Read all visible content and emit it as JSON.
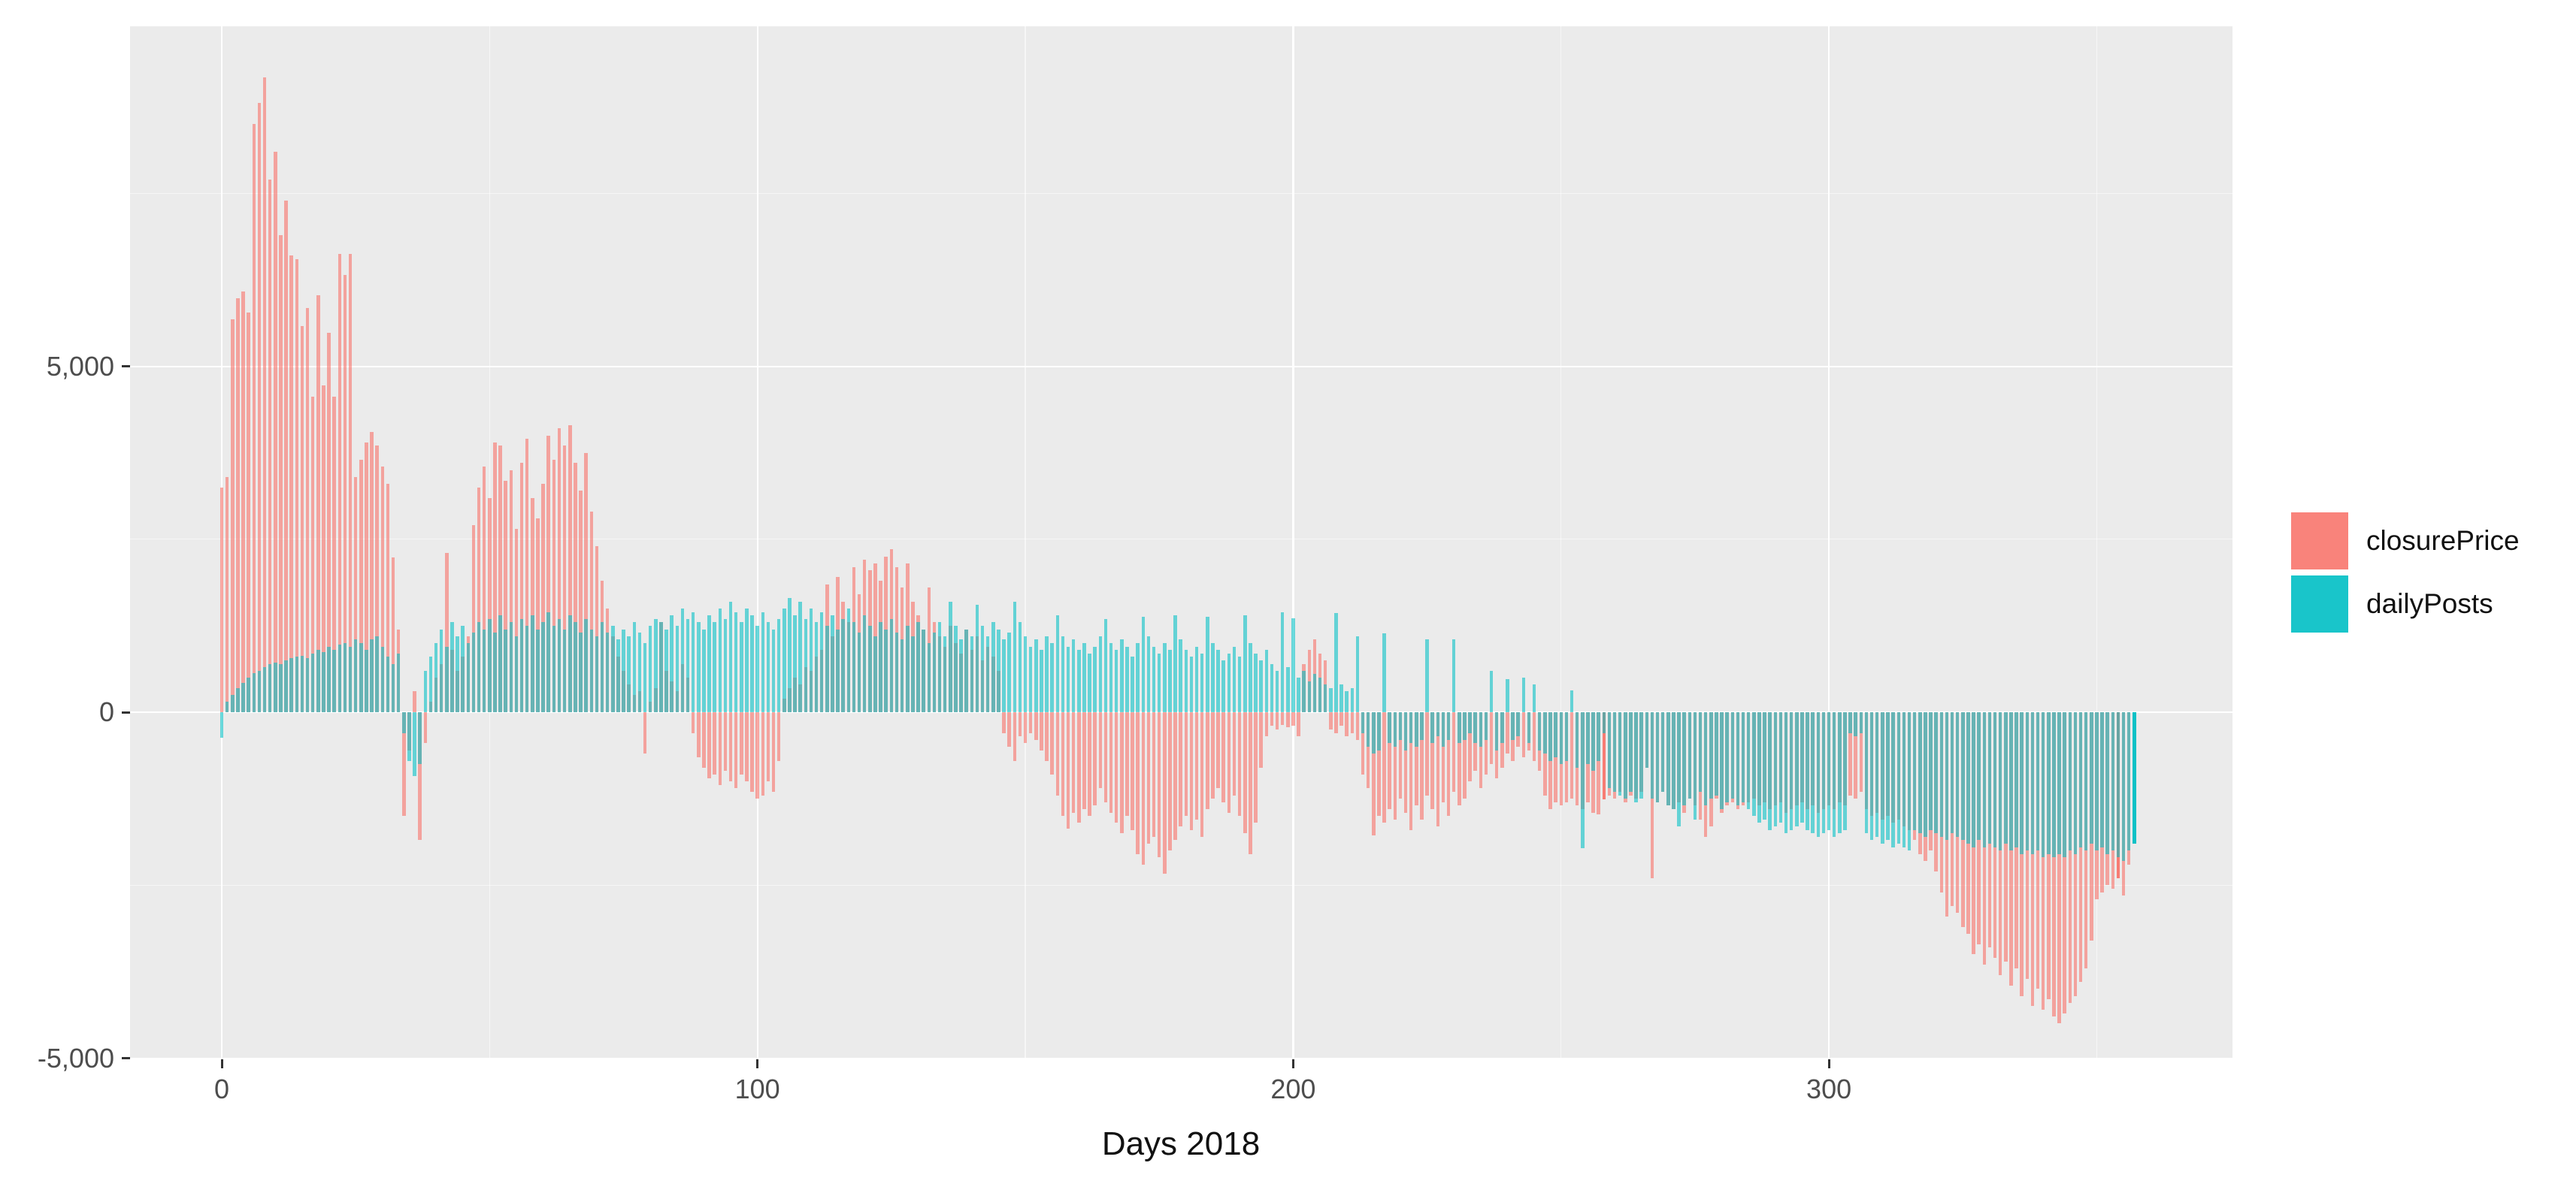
{
  "figure": {
    "background": "#FFFFFF",
    "panel_background": "#EBEBEB",
    "grid_color": "#FFFFFF",
    "tick_color": "#333333",
    "tick_label_color": "#4D4D4D",
    "axis_title_color": "#111111"
  },
  "chart_data": {
    "type": "bar",
    "title": "",
    "xlabel": "Days 2018",
    "ylabel": "",
    "grid": true,
    "legend_position": "right",
    "bar_style": "overlaid-identity, semi-transparent",
    "x_axis": {
      "ticks": [
        0,
        100,
        200,
        300
      ],
      "tick_labels": [
        "0",
        "100",
        "200",
        "300"
      ],
      "minor_ticks": [
        50,
        150,
        250,
        350
      ],
      "range_days": [
        0,
        357
      ]
    },
    "y_axis": {
      "ticks": [
        5000,
        0,
        -5000
      ],
      "tick_labels": [
        "5,000",
        "0",
        "-5,000"
      ],
      "minor_ticks": [
        7500,
        2500,
        -2500
      ],
      "range": [
        -5020,
        9920
      ]
    },
    "series": [
      {
        "name": "closurePrice",
        "color": "#F8766D",
        "alpha": 0.62,
        "opaque_days": [
          258,
          354
        ],
        "values": [
          3250,
          3400,
          5680,
          5980,
          6080,
          5780,
          8500,
          8810,
          9180,
          7700,
          8100,
          6900,
          7400,
          6600,
          6550,
          5580,
          5840,
          4560,
          6030,
          4720,
          5480,
          4560,
          6620,
          6320,
          6620,
          3400,
          3650,
          3900,
          4050,
          3850,
          3550,
          3300,
          2240,
          1200,
          -1500,
          -550,
          300,
          -1850,
          -450,
          150,
          500,
          700,
          2300,
          900,
          600,
          800,
          1100,
          2700,
          3250,
          3550,
          3100,
          3900,
          3850,
          3350,
          3500,
          2650,
          3600,
          3950,
          3100,
          2800,
          3300,
          4000,
          3650,
          4100,
          3850,
          4150,
          3600,
          3200,
          3750,
          2900,
          2400,
          1900,
          1500,
          1100,
          800,
          600,
          400,
          250,
          300,
          -600,
          150,
          350,
          1300,
          600,
          450,
          300,
          700,
          500,
          -300,
          -650,
          -800,
          -950,
          -900,
          -1050,
          -850,
          -1000,
          -1100,
          -900,
          -1000,
          -1150,
          -1250,
          -1200,
          -1000,
          -1150,
          -700,
          200,
          350,
          500,
          400,
          650,
          600,
          800,
          900,
          1850,
          1100,
          1950,
          1600,
          1300,
          2100,
          1700,
          2200,
          2050,
          2150,
          1900,
          2250,
          2360,
          2100,
          1800,
          2150,
          1600,
          1400,
          1200,
          1800,
          1300,
          1100,
          950,
          1250,
          1000,
          850,
          1200,
          900,
          1100,
          750,
          950,
          800,
          600,
          -300,
          -500,
          -700,
          -350,
          -450,
          -300,
          -400,
          -550,
          -700,
          -900,
          -1200,
          -1500,
          -1680,
          -1450,
          -1600,
          -1400,
          -1500,
          -1350,
          -1100,
          -1300,
          -1450,
          -1600,
          -1750,
          -1500,
          -1700,
          -2050,
          -2200,
          -1900,
          -1800,
          -2100,
          -2330,
          -2000,
          -1850,
          -1650,
          -1500,
          -1700,
          -1550,
          -1800,
          -1400,
          -1250,
          -1100,
          -1300,
          -1450,
          -1200,
          -1500,
          -1750,
          -2050,
          -1600,
          -800,
          -350,
          -200,
          -250,
          -180,
          -220,
          -200,
          -350,
          700,
          900,
          1050,
          850,
          750,
          -250,
          -300,
          -200,
          -350,
          -300,
          -400,
          -900,
          -1100,
          -1780,
          -1500,
          -1600,
          -1400,
          -1550,
          -1250,
          -1450,
          -1700,
          -1350,
          -1550,
          -1200,
          -1400,
          -1650,
          -1300,
          -1500,
          -1150,
          -1350,
          -1250,
          -1000,
          -850,
          -1100,
          -900,
          -750,
          -950,
          -800,
          -600,
          -700,
          -500,
          -650,
          -550,
          -700,
          -850,
          -1200,
          -1400,
          -1300,
          -1350,
          -1300,
          -1250,
          -1350,
          -1400,
          -1300,
          -1450,
          -1480,
          -1260,
          -1200,
          -1250,
          -1150,
          -1300,
          -1200,
          -1250,
          -1150,
          -800,
          -2400,
          -1300,
          -1150,
          -1350,
          -1400,
          -1300,
          -1450,
          -1250,
          -1350,
          -1550,
          -1800,
          -1650,
          -1250,
          -1450,
          -1350,
          -1300,
          -1400,
          -1350,
          -1300,
          -1250,
          -1350,
          -1300,
          -1400,
          -1350,
          -1300,
          -1450,
          -1400,
          -1350,
          -1300,
          -1400,
          -1350,
          -1450,
          -1400,
          -1350,
          -1400,
          -1300,
          -1350,
          -1200,
          -1250,
          -1150,
          -1400,
          -1500,
          -1450,
          -1550,
          -1500,
          -1600,
          -1550,
          -1650,
          -1700,
          -1850,
          -2050,
          -2150,
          -2000,
          -2300,
          -2600,
          -2950,
          -2800,
          -2900,
          -3100,
          -3200,
          -3500,
          -3350,
          -3650,
          -3400,
          -3550,
          -3800,
          -3600,
          -3950,
          -3700,
          -4100,
          -3850,
          -4250,
          -4000,
          -4300,
          -4150,
          -4400,
          -4500,
          -4350,
          -4200,
          -4100,
          -3900,
          -3700,
          -3300,
          -2700,
          -2600,
          -2500,
          -2550,
          -2400,
          -2650,
          -2200,
          0
        ]
      },
      {
        "name": "dailyPosts",
        "color": "#00BFC4",
        "alpha": 0.58,
        "opaque_days": [
          357
        ],
        "values": [
          -370,
          150,
          250,
          350,
          420,
          500,
          560,
          600,
          650,
          700,
          720,
          700,
          750,
          780,
          800,
          820,
          780,
          850,
          900,
          870,
          950,
          900,
          980,
          1000,
          950,
          1050,
          1000,
          900,
          1050,
          1100,
          950,
          800,
          700,
          850,
          -300,
          -700,
          -920,
          -750,
          600,
          800,
          1000,
          1200,
          950,
          1300,
          1100,
          1250,
          1000,
          1150,
          1300,
          1200,
          1350,
          1150,
          1400,
          1200,
          1300,
          1100,
          1350,
          1250,
          1400,
          1200,
          1300,
          1450,
          1250,
          1350,
          1200,
          1400,
          1300,
          1150,
          1350,
          1200,
          1100,
          1300,
          1150,
          1250,
          1050,
          1200,
          1100,
          1300,
          1150,
          1000,
          1250,
          1350,
          1300,
          1200,
          1400,
          1250,
          1500,
          1350,
          1450,
          1300,
          1200,
          1400,
          1300,
          1500,
          1350,
          1600,
          1450,
          1300,
          1500,
          1400,
          1250,
          1450,
          1300,
          1200,
          1350,
          1500,
          1650,
          1400,
          1600,
          1350,
          1500,
          1300,
          1450,
          1250,
          1400,
          1200,
          1350,
          1500,
          1300,
          1150,
          1400,
          1250,
          1100,
          1300,
          1200,
          1350,
          1150,
          1050,
          1250,
          1100,
          1300,
          1200,
          1000,
          1150,
          1300,
          1100,
          1600,
          1250,
          1050,
          1200,
          1100,
          1550,
          1250,
          1100,
          1300,
          1200,
          1050,
          1150,
          1600,
          1300,
          1100,
          950,
          1050,
          900,
          1100,
          1000,
          1400,
          1100,
          950,
          1050,
          900,
          1000,
          850,
          950,
          1100,
          1350,
          1000,
          900,
          1050,
          950,
          800,
          1000,
          1380,
          1100,
          950,
          850,
          1000,
          900,
          1400,
          1050,
          900,
          800,
          950,
          850,
          1380,
          1000,
          900,
          750,
          850,
          950,
          800,
          1400,
          1000,
          850,
          750,
          900,
          700,
          600,
          1450,
          650,
          1360,
          500,
          600,
          450,
          550,
          500,
          400,
          350,
          1430,
          400,
          300,
          350,
          1100,
          -300,
          -500,
          -600,
          -550,
          1140,
          -450,
          -500,
          -400,
          -550,
          -450,
          -500,
          -400,
          1050,
          -450,
          -350,
          -500,
          -400,
          1050,
          -450,
          -400,
          -300,
          -450,
          -500,
          -400,
          600,
          -550,
          -450,
          480,
          -400,
          -350,
          500,
          -450,
          400,
          -550,
          -600,
          -700,
          -650,
          -750,
          -700,
          315,
          -800,
          -1970,
          -750,
          -850,
          -700,
          -300,
          -1100,
          -1150,
          -1200,
          -1250,
          -1150,
          -1300,
          -1250,
          -800,
          -1250,
          -1300,
          -1150,
          -1350,
          -1400,
          -1650,
          -1350,
          -1250,
          -1550,
          -1150,
          -1350,
          -1250,
          -1200,
          -1400,
          -1300,
          -1250,
          -1350,
          -1300,
          -1400,
          -1500,
          -1600,
          -1550,
          -1700,
          -1650,
          -1600,
          -1750,
          -1700,
          -1650,
          -1600,
          -1700,
          -1750,
          -1800,
          -1750,
          -1700,
          -1800,
          -1750,
          -1700,
          -300,
          -350,
          -300,
          -1750,
          -1850,
          -1800,
          -1900,
          -1850,
          -1950,
          -1900,
          -1950,
          -2000,
          -1700,
          -1750,
          -1800,
          -1700,
          -1750,
          -1800,
          -1850,
          -1750,
          -1800,
          -1850,
          -1900,
          -1950,
          -1850,
          -1950,
          -1900,
          -1950,
          -2000,
          -1900,
          -2000,
          -1950,
          -2050,
          -2000,
          -2050,
          -2000,
          -2100,
          -2050,
          -2100,
          -2050,
          -2100,
          -2000,
          -2050,
          -1950,
          -2000,
          -1900,
          -2000,
          -1950,
          -2050,
          -2000,
          -2100,
          -2150,
          -2000,
          -1900
        ]
      }
    ]
  },
  "legend": {
    "title": ""
  }
}
